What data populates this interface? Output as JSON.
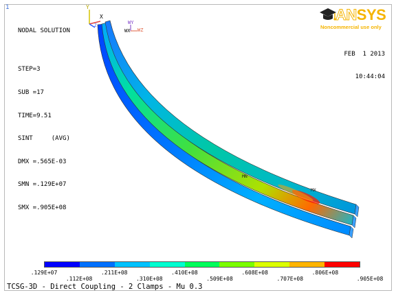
{
  "window_number": "1",
  "info_lines": [
    "NODAL SOLUTION",
    "",
    "STEP=3",
    "SUB =17",
    "TIME=9.51",
    "SINT     (AVG)",
    "DMX =.565E-03",
    "SMN =.129E+07",
    "SMX =.905E+08"
  ],
  "date": "FEB  1 2013",
  "time": "10:44:04",
  "logo": {
    "word_an": "AN",
    "word_sys": "SYS",
    "subtitle": "Noncommercial use only"
  },
  "triad": {
    "x": "X",
    "y": "Y",
    "z": "Z"
  },
  "view_labels": {
    "wy": "WY",
    "wx": "WX",
    "wz": "WZ"
  },
  "markers": {
    "min": "MN",
    "max": "MX"
  },
  "legend": {
    "colors": [
      "#0000ff",
      "#0070ff",
      "#00c2ff",
      "#00ffd0",
      "#00ff5a",
      "#7aff00",
      "#dcff00",
      "#ffb400",
      "#ff0000"
    ],
    "top_labels": [
      ".129E+07",
      ".211E+08",
      ".410E+08",
      ".608E+08",
      ".806E+08"
    ],
    "bottom_labels": [
      ".112E+08",
      ".310E+08",
      ".509E+08",
      ".707E+08",
      ".905E+08"
    ]
  },
  "footer": "TCSG-3D - Direct Coupling - 2 Clamps - Mu 0.3"
}
